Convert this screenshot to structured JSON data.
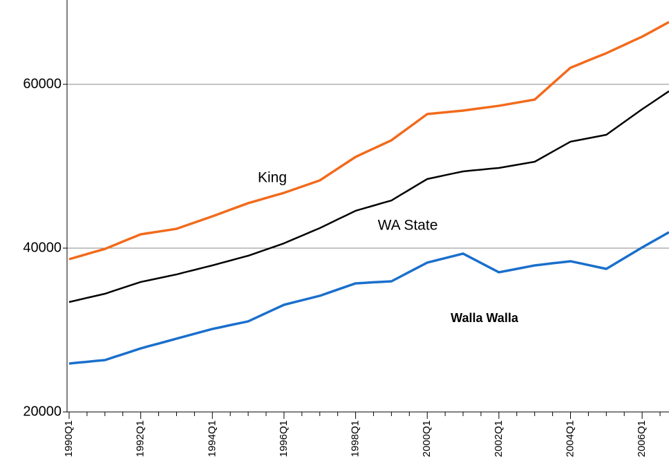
{
  "chart_data": {
    "type": "line",
    "categories": [
      "1990Q1",
      null,
      null,
      null,
      null,
      null,
      null,
      null,
      "1992Q1",
      null,
      null,
      null,
      null,
      null,
      null,
      null,
      "1994Q1",
      null,
      null,
      null,
      null,
      null,
      null,
      null,
      "1996Q1",
      null,
      null,
      null,
      null,
      null,
      null,
      null,
      "1998Q1",
      null,
      null,
      null,
      null,
      null,
      null,
      null,
      "2000Q1",
      null,
      null,
      null,
      null,
      null,
      null,
      null,
      "2002Q1",
      null,
      null,
      null,
      null,
      null,
      null,
      null,
      "2004Q1",
      null,
      null,
      null,
      null,
      null,
      null,
      null,
      "2006Q1",
      null,
      null,
      null
    ],
    "series": [
      {
        "name": "King",
        "color": "#f26a1b",
        "values": [
          38650,
          38960,
          39280,
          39590,
          39900,
          40350,
          40800,
          41240,
          41690,
          41860,
          42020,
          42190,
          42360,
          42740,
          43120,
          43500,
          43880,
          44280,
          44690,
          45090,
          45490,
          45810,
          46120,
          46440,
          46750,
          47130,
          47510,
          47890,
          48270,
          48990,
          49710,
          50420,
          51140,
          51650,
          52160,
          52660,
          53170,
          53970,
          54770,
          55570,
          56370,
          56480,
          56580,
          56690,
          56790,
          56940,
          57090,
          57230,
          57380,
          57570,
          57760,
          57950,
          58140,
          59110,
          60090,
          61060,
          62030,
          62470,
          62920,
          63360,
          63800,
          64310,
          64810,
          65320,
          65820,
          66410,
          67010,
          67600
        ]
      },
      {
        "name": "WA State",
        "color": "#000000",
        "values": [
          33420,
          33670,
          33930,
          34180,
          34430,
          34790,
          35150,
          35510,
          35870,
          36100,
          36330,
          36560,
          36790,
          37070,
          37340,
          37620,
          37890,
          38190,
          38480,
          38780,
          39070,
          39450,
          39830,
          40210,
          40590,
          41060,
          41520,
          41990,
          42450,
          42980,
          43510,
          44030,
          44560,
          44880,
          45190,
          45510,
          45820,
          46480,
          47130,
          47790,
          48440,
          48670,
          48910,
          49140,
          49370,
          49480,
          49580,
          49690,
          49790,
          49980,
          50170,
          50360,
          50550,
          51160,
          51780,
          52390,
          53000,
          53210,
          53420,
          53630,
          53840,
          54620,
          55400,
          56180,
          56960,
          57690,
          58430,
          59160
        ]
      },
      {
        "name": "Walla Walla",
        "color": "#1a6fcc",
        "values": [
          25910,
          26020,
          26120,
          26230,
          26330,
          26690,
          27040,
          27400,
          27760,
          28060,
          28350,
          28650,
          28950,
          29250,
          29540,
          29840,
          30130,
          30360,
          30600,
          30830,
          31060,
          31570,
          32070,
          32580,
          33080,
          33360,
          33630,
          33910,
          34180,
          34560,
          34940,
          35320,
          35700,
          35760,
          35830,
          35890,
          35950,
          36520,
          37090,
          37660,
          38230,
          38510,
          38780,
          39060,
          39330,
          38760,
          38190,
          37620,
          37050,
          37260,
          37470,
          37680,
          37890,
          38020,
          38150,
          38270,
          38400,
          38170,
          37940,
          37700,
          37470,
          38120,
          38780,
          39430,
          40080,
          40700,
          41320,
          41940
        ]
      }
    ],
    "ylim": [
      20000,
      70000
    ],
    "yticks": [
      20000,
      40000,
      60000
    ],
    "grid": true
  }
}
